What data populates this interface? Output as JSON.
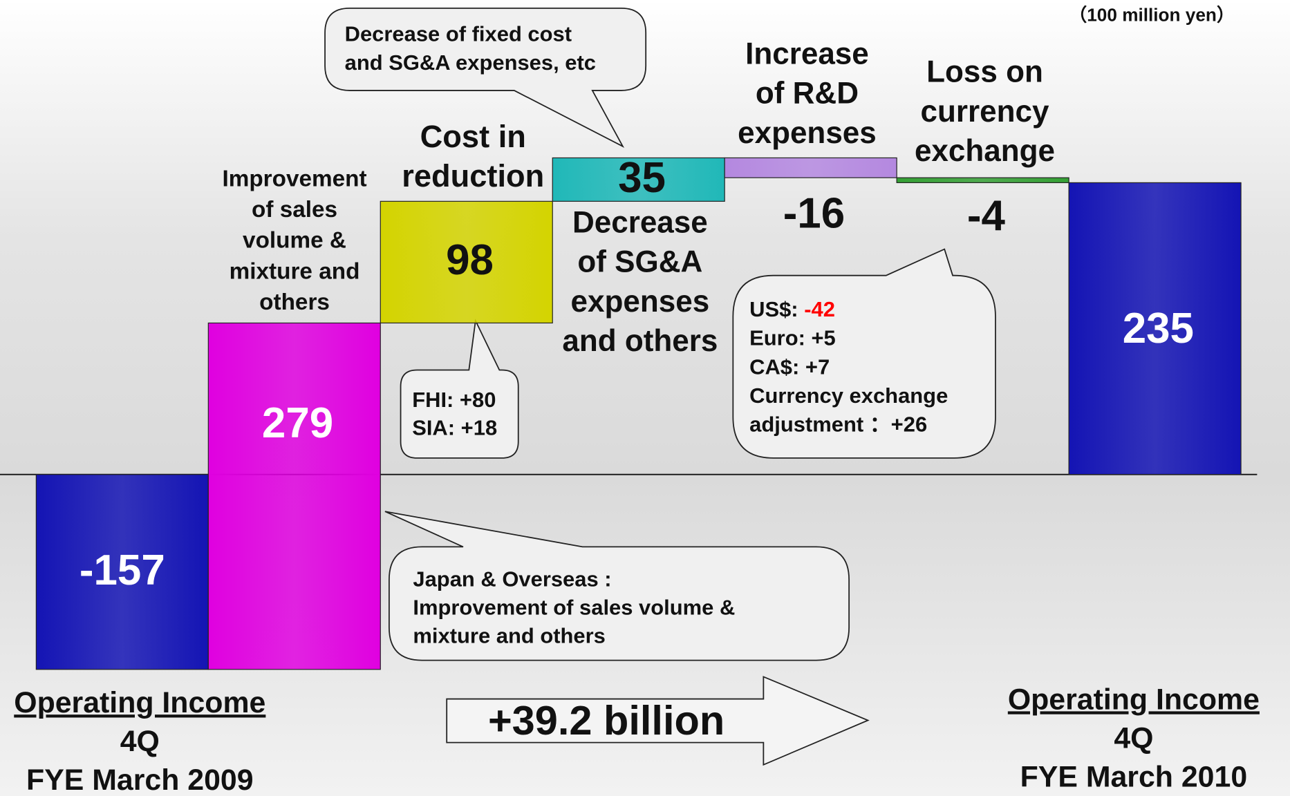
{
  "unit_note": "（100 million yen）",
  "chart_data": {
    "type": "waterfall",
    "categories": [
      [
        "Operating Income",
        "4Q",
        "FYE March 2009"
      ],
      [
        "Improvement",
        "of sales",
        "volume &",
        "mixture and",
        "others"
      ],
      [
        "Cost in",
        "reduction"
      ],
      [
        "Decrease",
        "of SG&A",
        "expenses",
        "and others"
      ],
      [
        "Increase",
        "of R&D",
        "expenses"
      ],
      [
        "Loss on",
        "currency",
        "exchange"
      ],
      [
        "Operating Income",
        "4Q",
        "FYE March 2010"
      ]
    ],
    "values": [
      -157,
      279,
      98,
      35,
      -16,
      -4,
      235
    ],
    "colors": [
      "#1414b4",
      "#e000e0",
      "#d4d400",
      "#20b8b8",
      "#b488e0",
      "#34a034",
      "#1414b4"
    ]
  },
  "callouts": [
    {
      "lines": [
        "Decrease of fixed cost",
        "and SG&A expenses, etc"
      ]
    },
    {
      "lines": [
        "FHI: +80",
        "SIA: +18"
      ]
    },
    {
      "lines": [
        {
          "label": "US$: ",
          "value": "-42",
          "value_color": "#ff0000"
        },
        "Euro: +5",
        "CA$: +7",
        "Currency exchange",
        "adjustment ：+26"
      ]
    },
    {
      "lines": [
        "Japan & Overseas :",
        "Improvement of sales volume &",
        "mixture and others"
      ]
    }
  ],
  "arrow_label": "+39.2 billion"
}
